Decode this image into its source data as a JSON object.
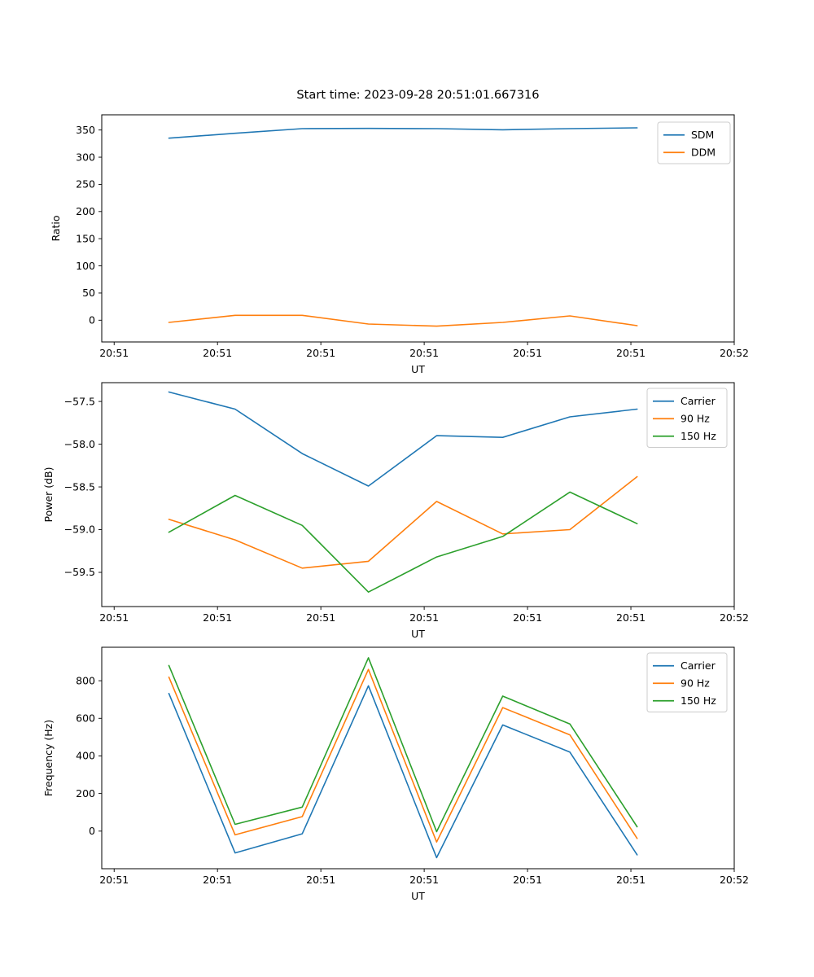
{
  "figure": {
    "title": "Start time: 2023-09-28 20:51:01.667316",
    "background": "#ffffff",
    "palette": {
      "blue": "#1f77b4",
      "orange": "#ff7f0e",
      "green": "#2ca02c"
    }
  },
  "chart_data": [
    {
      "type": "line",
      "title": "Start time: 2023-09-28 20:51:01.667316",
      "xlabel": "UT",
      "ylabel": "Ratio",
      "legend_position": "upper right",
      "grid": false,
      "x_seconds_after_20_51_00": [
        5.3,
        11.7,
        18.2,
        24.6,
        31.2,
        37.6,
        44.1,
        50.6
      ],
      "xlim": [
        -1.2,
        60.0
      ],
      "xticks": [
        0,
        10,
        20,
        30,
        40,
        50,
        60
      ],
      "xtick_labels": [
        "20:51",
        "20:51",
        "20:51",
        "20:51",
        "20:51",
        "20:51",
        "20:52"
      ],
      "ylim": [
        -40,
        378
      ],
      "yticks": [
        0,
        50,
        100,
        150,
        200,
        250,
        300,
        350
      ],
      "ytick_labels": [
        "0",
        "50",
        "100",
        "150",
        "200",
        "250",
        "300",
        "350"
      ],
      "series": [
        {
          "name": "SDM",
          "color": "#1f77b4",
          "values": [
            335,
            344,
            352.5,
            353,
            352.5,
            350.5,
            352.5,
            354
          ]
        },
        {
          "name": "DDM",
          "color": "#ff7f0e",
          "values": [
            -4,
            9,
            9,
            -7,
            -11,
            -4,
            8,
            -10
          ]
        }
      ]
    },
    {
      "type": "line",
      "title": "",
      "xlabel": "UT",
      "ylabel": "Power (dB)",
      "legend_position": "upper right",
      "grid": false,
      "x_seconds_after_20_51_00": [
        5.3,
        11.7,
        18.2,
        24.6,
        31.2,
        37.6,
        44.1,
        50.6
      ],
      "xlim": [
        -1.2,
        60.0
      ],
      "xticks": [
        0,
        10,
        20,
        30,
        40,
        50,
        60
      ],
      "xtick_labels": [
        "20:51",
        "20:51",
        "20:51",
        "20:51",
        "20:51",
        "20:51",
        "20:52"
      ],
      "ylim": [
        -59.9,
        -57.28
      ],
      "yticks": [
        -57.5,
        -58.0,
        -58.5,
        -59.0,
        -59.5
      ],
      "ytick_labels": [
        "−57.5",
        "−58.0",
        "−58.5",
        "−59.0",
        "−59.5"
      ],
      "series": [
        {
          "name": "Carrier",
          "color": "#1f77b4",
          "values": [
            -57.39,
            -57.59,
            -58.11,
            -58.49,
            -57.9,
            -57.92,
            -57.68,
            -57.59
          ]
        },
        {
          "name": "90 Hz",
          "color": "#ff7f0e",
          "values": [
            -58.88,
            -59.12,
            -59.45,
            -59.37,
            -58.67,
            -59.05,
            -59.0,
            -58.38
          ]
        },
        {
          "name": "150 Hz",
          "color": "#2ca02c",
          "values": [
            -59.03,
            -58.6,
            -58.95,
            -59.73,
            -59.32,
            -59.08,
            -58.56,
            -58.93
          ]
        }
      ]
    },
    {
      "type": "line",
      "title": "",
      "xlabel": "UT",
      "ylabel": "Frequency (Hz)",
      "legend_position": "upper right",
      "grid": false,
      "x_seconds_after_20_51_00": [
        5.3,
        11.7,
        18.2,
        24.6,
        31.2,
        37.6,
        44.1,
        50.6
      ],
      "xlim": [
        -1.2,
        60.0
      ],
      "xticks": [
        0,
        10,
        20,
        30,
        40,
        50,
        60
      ],
      "xtick_labels": [
        "20:51",
        "20:51",
        "20:51",
        "20:51",
        "20:51",
        "20:51",
        "20:52"
      ],
      "ylim": [
        -200,
        978
      ],
      "yticks": [
        0,
        200,
        400,
        600,
        800
      ],
      "ytick_labels": [
        "0",
        "200",
        "400",
        "600",
        "800"
      ],
      "series": [
        {
          "name": "Carrier",
          "color": "#1f77b4",
          "values": [
            732,
            -116,
            -14,
            773,
            -141,
            565,
            420,
            -126
          ]
        },
        {
          "name": "90 Hz",
          "color": "#ff7f0e",
          "values": [
            819,
            -20,
            77,
            860,
            -58,
            657,
            512,
            -39
          ]
        },
        {
          "name": "150 Hz",
          "color": "#2ca02c",
          "values": [
            881,
            36,
            128,
            922,
            -3,
            718,
            570,
            23
          ]
        }
      ]
    }
  ]
}
